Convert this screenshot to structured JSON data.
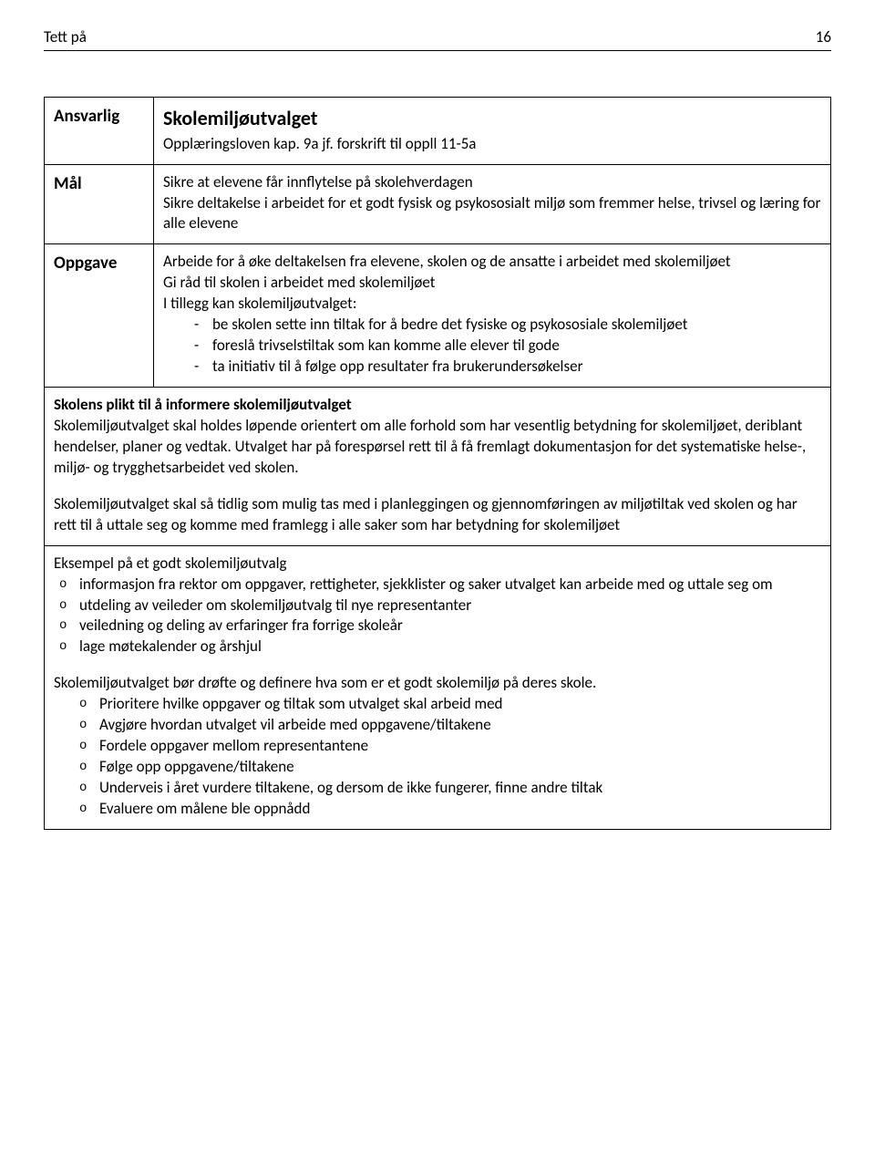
{
  "header": {
    "title": "Tett på",
    "page": "16"
  },
  "table": {
    "row1": {
      "label": "Ansvarlig",
      "title": "Skolemiljøutvalget",
      "sub": "Opplæringsloven kap. 9a jf. forskrift til oppll 11-5a"
    },
    "row2": {
      "label": "Mål",
      "line1": "Sikre at elevene får innflytelse på skolehverdagen",
      "line2": "Sikre deltakelse i arbeidet for et godt fysisk og psykososialt miljø som fremmer helse, trivsel og læring for alle elevene"
    },
    "row3": {
      "label": "Oppgave",
      "line1": "Arbeide for å øke deltakelsen fra elevene, skolen og de ansatte i arbeidet med skolemiljøet",
      "line2": "Gi råd til skolen i arbeidet med skolemiljøet",
      "line3": "I tillegg kan skolemiljøutvalget:",
      "dash1": "be skolen sette inn tiltak for å bedre det fysiske og psykososiale skolemiljøet",
      "dash2": "foreslå trivselstiltak som kan komme alle elever til gode",
      "dash3": "ta initiativ til å følge opp resultater fra brukerundersøkelser"
    },
    "row4": {
      "sec1_title": "Skolens plikt til å informere skolemiljøutvalget",
      "sec1_para": "Skolemiljøutvalget skal holdes løpende orientert om alle forhold som har vesentlig betydning for skolemiljøet, deriblant hendelser, planer og vedtak. Utvalget har på forespørsel rett til å få fremlagt dokumentasjon for det systematiske helse-, miljø- og trygghetsarbeidet ved skolen.",
      "sec2_para": "Skolemiljøutvalget skal så tidlig som mulig tas med i planleggingen og gjennomføringen av miljøtiltak ved skolen og har rett til å uttale seg og komme med framlegg i alle saker som har betydning for skolemiljøet"
    },
    "row5": {
      "title": "Eksempel på et godt skolemiljøutvalg",
      "o1": "informasjon fra rektor om oppgaver, rettigheter, sjekklister og saker utvalget kan arbeide med og uttale seg om",
      "o2": "utdeling av veileder om skolemiljøutvalg til nye representanter",
      "o3": "veiledning og deling av erfaringer fra forrige skoleår",
      "o4": "lage møtekalender og årshjul",
      "para2": "Skolemiljøutvalget bør drøfte og definere hva som er et godt skolemiljø på deres skole.",
      "i1": "Prioritere hvilke oppgaver og tiltak som utvalget skal arbeid med",
      "i2": "Avgjøre hvordan utvalget vil arbeide med oppgavene/tiltakene",
      "i3": "Fordele oppgaver mellom representantene",
      "i4": "Følge opp oppgavene/tiltakene",
      "i5": "Underveis i året vurdere tiltakene, og dersom de ikke fungerer, finne andre tiltak",
      "i6": "Evaluere om målene ble oppnådd"
    }
  }
}
